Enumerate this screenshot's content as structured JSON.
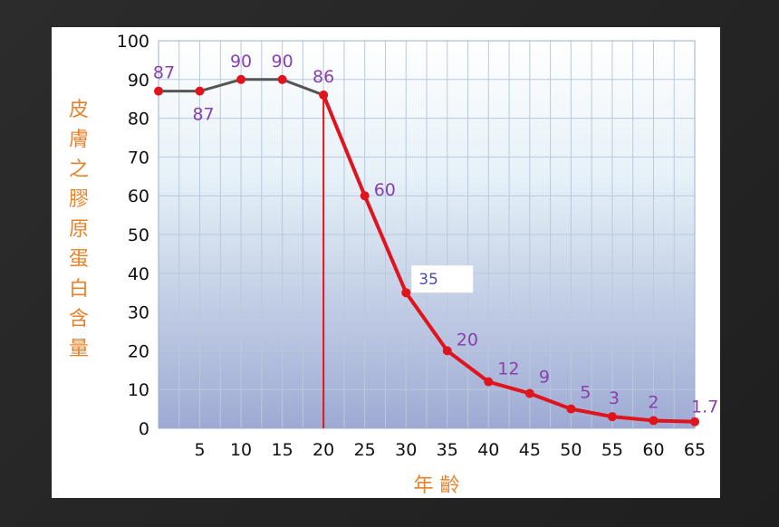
{
  "chart_data": {
    "type": "line",
    "ylabel": "皮膚之膠原蛋白含量",
    "xlabel": "年 齡",
    "x": [
      0,
      5,
      10,
      15,
      20,
      25,
      30,
      35,
      40,
      45,
      50,
      55,
      60,
      65
    ],
    "xtick_labels": [
      "5",
      "10",
      "15",
      "20",
      "25",
      "30",
      "35",
      "40",
      "45",
      "50",
      "55",
      "60",
      "65"
    ],
    "ytick_labels": [
      "0",
      "10",
      "20",
      "30",
      "40",
      "50",
      "60",
      "70",
      "80",
      "90",
      "100"
    ],
    "xlim": [
      0,
      65
    ],
    "ylim": [
      0,
      100
    ],
    "grid": true,
    "series": [
      {
        "values": [
          87,
          87,
          90,
          90,
          86
        ],
        "x": [
          0,
          5,
          10,
          15,
          20
        ],
        "color": "#555555"
      },
      {
        "values": [
          86,
          60,
          35,
          20,
          12,
          9,
          5,
          3,
          2,
          1.7
        ],
        "x": [
          20,
          25,
          30,
          35,
          40,
          45,
          50,
          55,
          60,
          65
        ],
        "color": "#e0141c"
      }
    ],
    "data_labels": [
      "87",
      "87",
      "90",
      "90",
      "86",
      "60",
      "35",
      "20",
      "12",
      "9",
      "5",
      "3",
      "2",
      "1.7"
    ],
    "reference_line_x": 20,
    "reference_line_color": "#e0141c",
    "point_color": "#e0141c",
    "label_color": "#8a3fb0",
    "axis_title_color": "#e8822a"
  }
}
